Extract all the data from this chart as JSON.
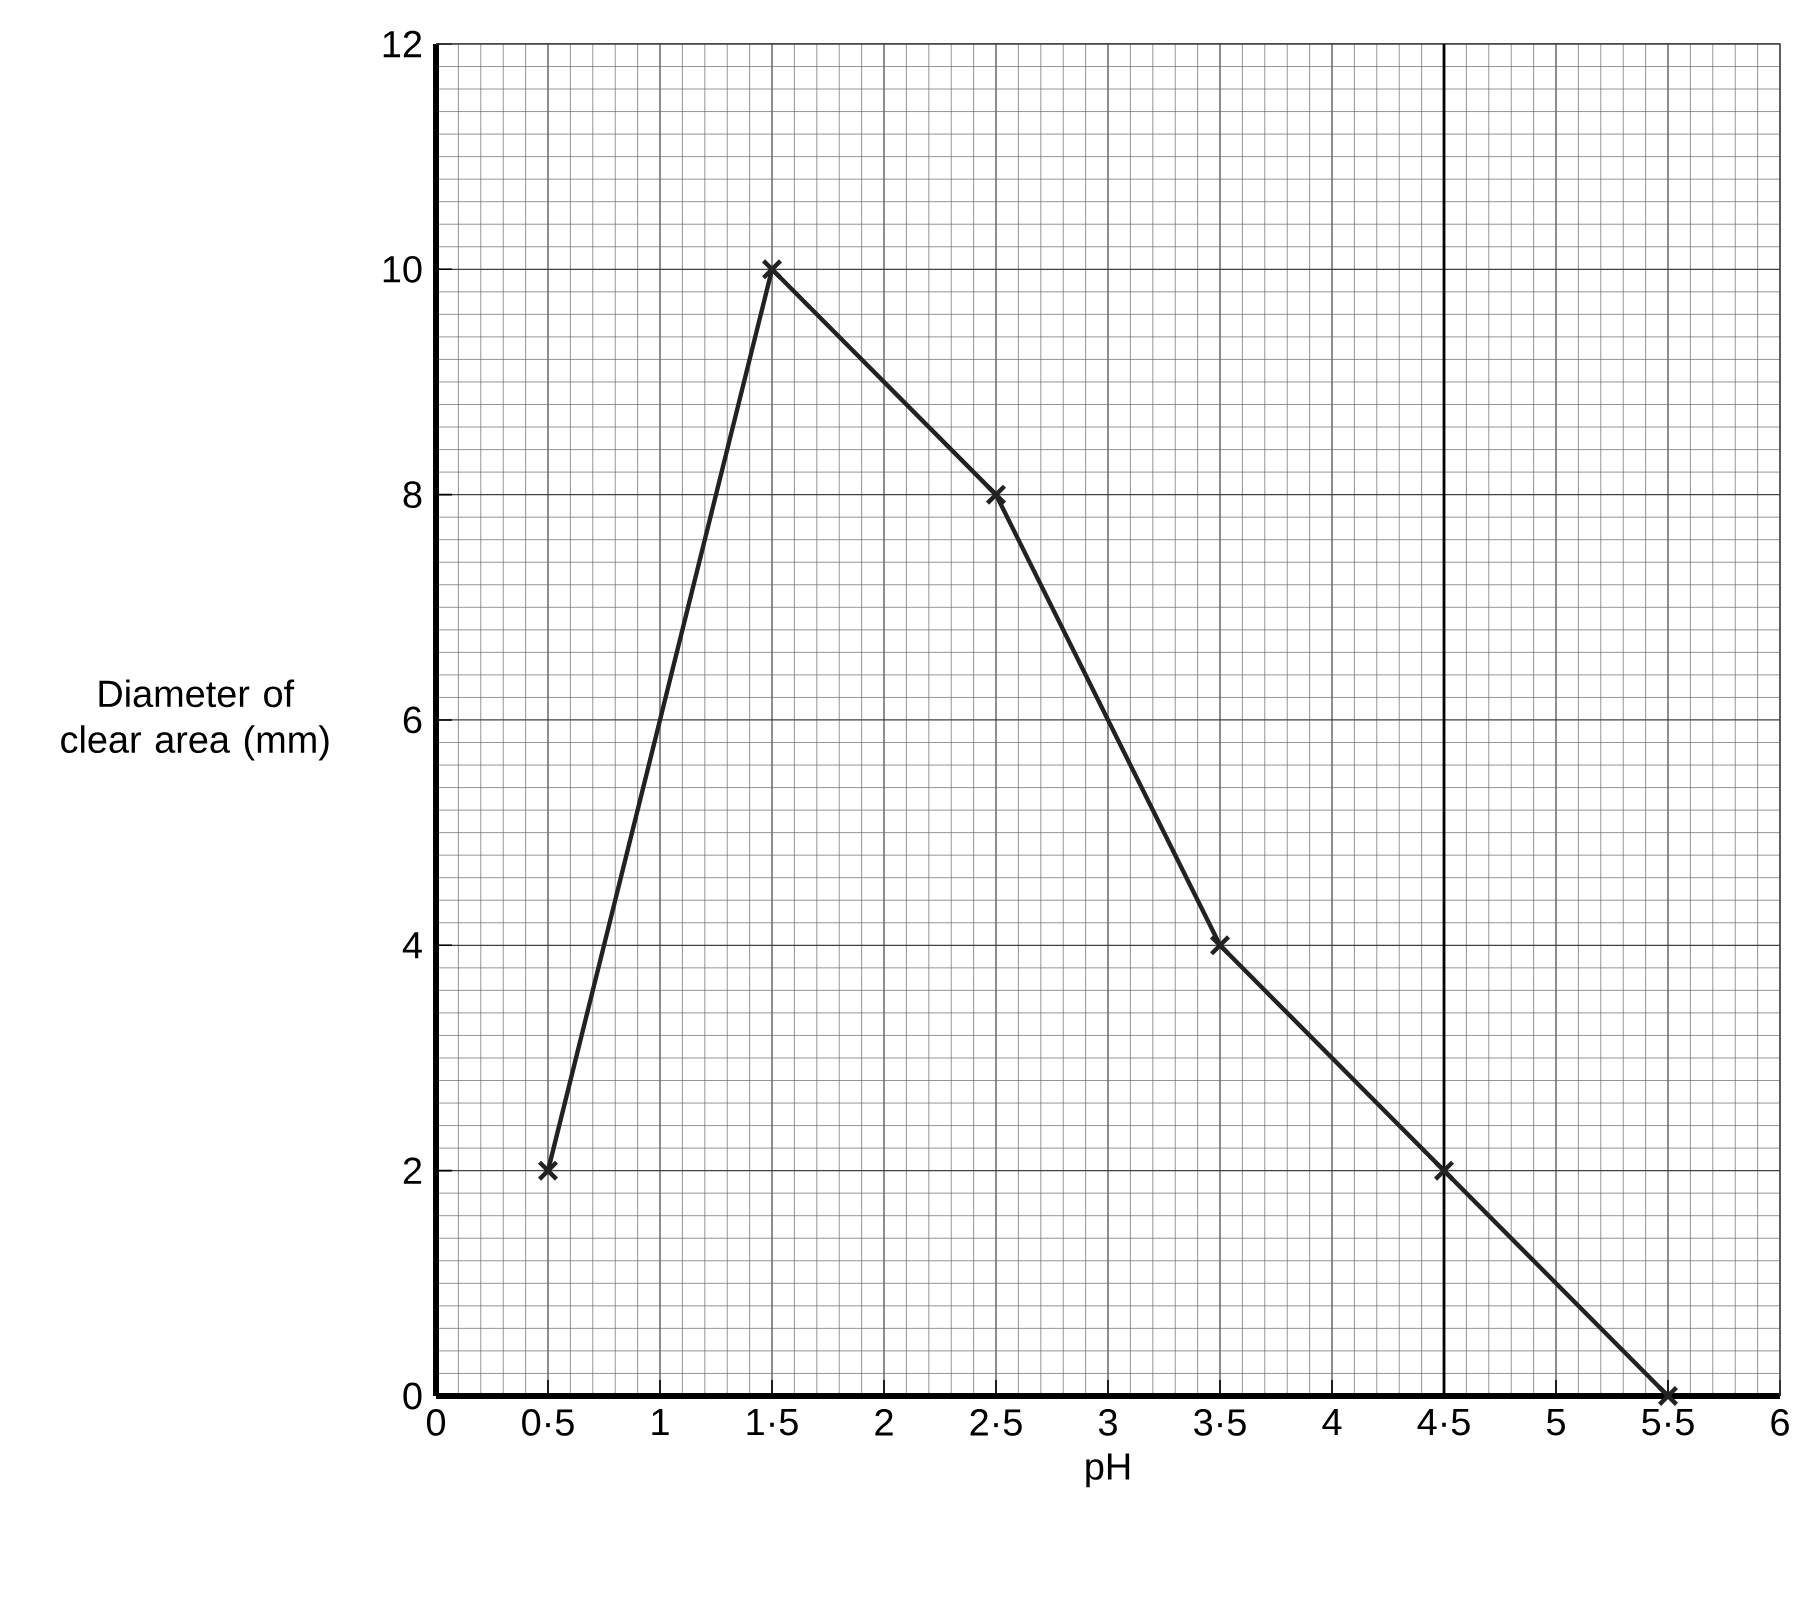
{
  "chart_data": {
    "type": "line",
    "xlabel": "pH",
    "ylabel": "Diameter of clear area (mm)",
    "x": [
      0.5,
      1.5,
      2.5,
      3.5,
      4.5,
      5.5
    ],
    "series": [
      {
        "color": "#222222",
        "values": [
          2,
          10,
          8,
          4,
          2,
          0
        ]
      }
    ],
    "xlim": [
      0,
      6
    ],
    "ylim": [
      0,
      12
    ],
    "xticks": [
      0,
      {
        "value": 0.5,
        "label": "0·5"
      },
      1,
      {
        "value": 1.5,
        "label": "1·5"
      },
      2,
      {
        "value": 2.5,
        "label": "2·5"
      },
      3,
      {
        "value": 3.5,
        "label": "3·5"
      },
      4,
      {
        "value": 4.5,
        "label": "4·5"
      },
      5,
      {
        "value": 5.5,
        "label": "5·5"
      },
      6
    ],
    "yticks": [
      0,
      2,
      4,
      6,
      8,
      10,
      12
    ],
    "ref_lines": [
      {
        "axis": "x",
        "value": 4.5,
        "color": "#000000"
      }
    ],
    "grid": true,
    "marker": "cross",
    "line_style": "solid"
  }
}
